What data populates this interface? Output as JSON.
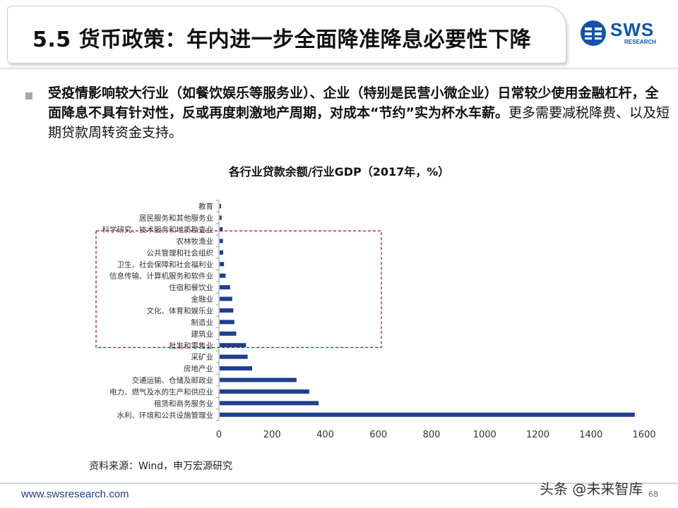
{
  "header": {
    "title": "5.5 货币政策：年内进一步全面降准降息必要性下降",
    "logo_text": "SWS",
    "logo_sub": "RESEARCH"
  },
  "body": {
    "bold_text": "受疫情影响较大行业（如餐饮娱乐等服务业）、企业（特别是民营小微企业）日常较少使用金融杠杆，全面降息不具有针对性，反或再度刺激地产周期，对成本“节约”实为杯水车薪。",
    "normal_text": "更多需要减税降费、以及短期贷款周转资金支持。"
  },
  "chart_data": {
    "type": "bar",
    "orientation": "horizontal",
    "title": "各行业贷款余额/行业GDP（2017年，%）",
    "categories": [
      "教育",
      "居民服务和其他服务业",
      "科学研究、技术服务和地质勘查业",
      "农林牧渔业",
      "公共管理和社会组织",
      "卫生、社会保障和社会福利业",
      "信息传输、计算机服务和软件业",
      "住宿和餐饮业",
      "金融业",
      "文化、体育和娱乐业",
      "制造业",
      "建筑业",
      "批发和零售业",
      "采矿业",
      "房地产业",
      "交通运输、仓储及邮政业",
      "电力、燃气及水的生产和供应业",
      "租赁和商务服务业",
      "水利、环境和公共设施管理业"
    ],
    "values": [
      8,
      10,
      14,
      15,
      16,
      19,
      25,
      42,
      50,
      54,
      58,
      65,
      102,
      108,
      125,
      292,
      340,
      375,
      1565
    ],
    "xlim": [
      0,
      1600
    ],
    "xticks": [
      "0",
      "200",
      "400",
      "600",
      "800",
      "1000",
      "1200",
      "1400",
      "1600"
    ],
    "bar_color": "#1f3f8f",
    "highlight_color": "#c00000",
    "grid": false
  },
  "source": "资料来源：Wind，申万宏源研究",
  "footer": {
    "url": "www.swsresearch.com",
    "page": "68",
    "watermark": "头条 @未来智库"
  }
}
